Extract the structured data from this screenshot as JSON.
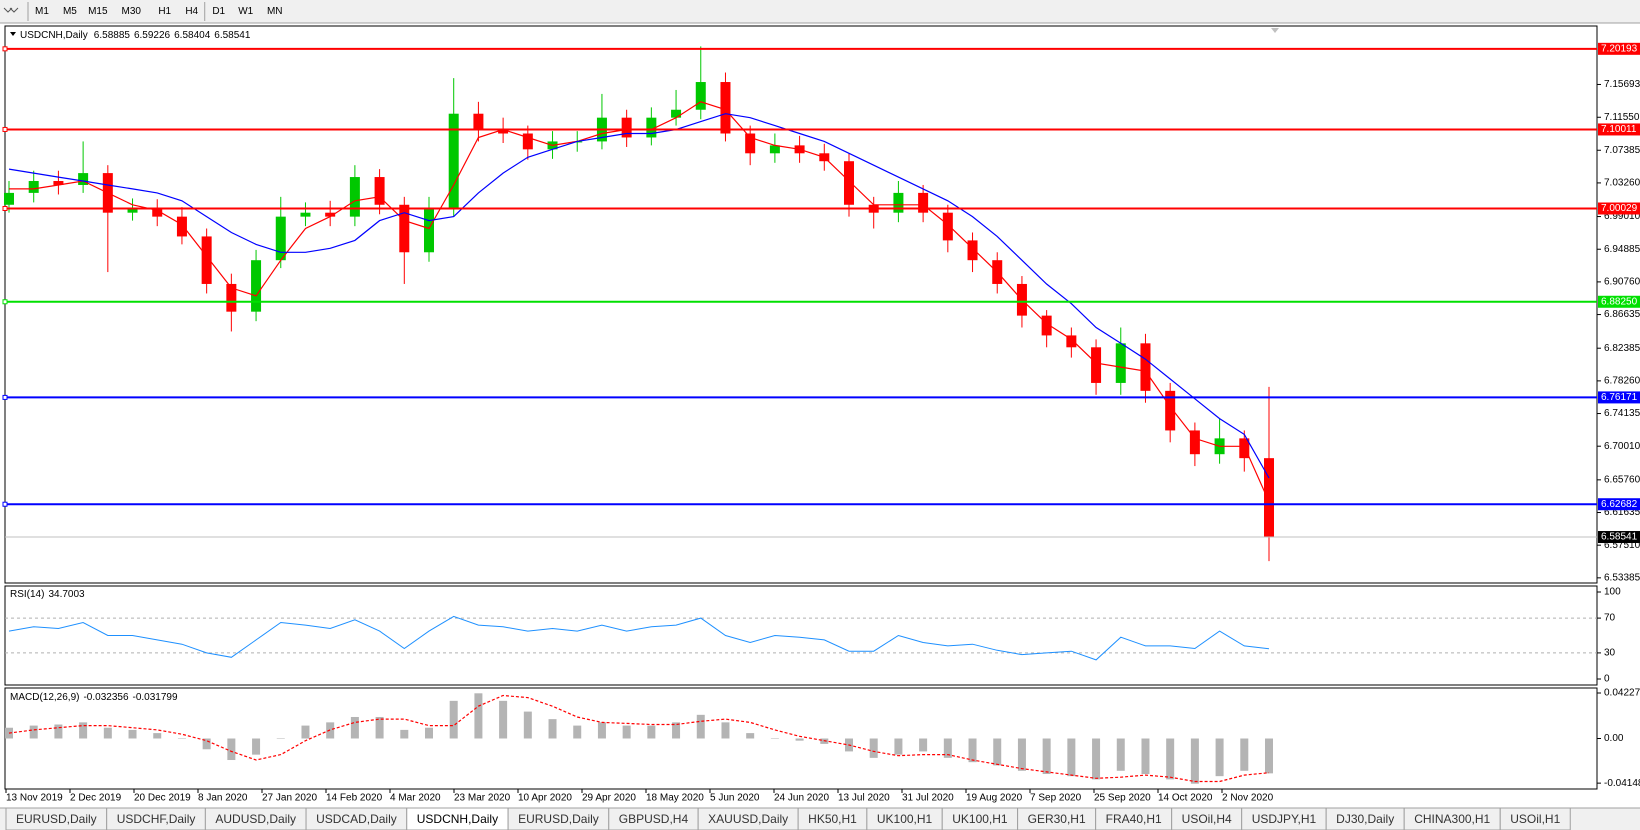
{
  "toolbar": {
    "timeframes": [
      "M1",
      "M5",
      "M15",
      "M30",
      "H1",
      "H4",
      "D1",
      "W1",
      "MN"
    ]
  },
  "chart_data": {
    "type": "candlestick",
    "symbol": "USDCNH,Daily",
    "quote": [
      6.58885,
      6.59226,
      6.58404,
      6.58541
    ],
    "categories": [
      "13 Nov 2019",
      "2 Dec 2019",
      "20 Dec 2019",
      "8 Jan 2020",
      "27 Jan 2020",
      "14 Feb 2020",
      "4 Mar 2020",
      "23 Mar 2020",
      "10 Apr 2020",
      "29 Apr 2020",
      "18 May 2020",
      "5 Jun 2020",
      "24 Jun 2020",
      "13 Jul 2020",
      "31 Jul 2020",
      "19 Aug 2020",
      "7 Sep 2020",
      "25 Sep 2020",
      "14 Oct 2020",
      "2 Nov 2020"
    ],
    "open": [
      7.005,
      7.02,
      7.035,
      7.03,
      7.045,
      6.995,
      7.0,
      6.99,
      6.965,
      6.905,
      6.87,
      6.935,
      6.99,
      6.995,
      6.99,
      7.04,
      7.005,
      6.945,
      7.0,
      7.12,
      7.1,
      7.095,
      7.075,
      7.085,
      7.085,
      7.115,
      7.09,
      7.115,
      7.125,
      7.16,
      7.095,
      7.07,
      7.08,
      7.07,
      7.06,
      7.005,
      6.995,
      7.02,
      6.995,
      6.96,
      6.935,
      6.905,
      6.865,
      6.84,
      6.825,
      6.78,
      6.83,
      6.77,
      6.72,
      6.69,
      6.71,
      6.685
    ],
    "high": [
      7.035,
      7.048,
      7.048,
      7.085,
      7.055,
      7.013,
      7.012,
      7.002,
      6.975,
      6.918,
      6.948,
      7.015,
      7.008,
      7.01,
      7.055,
      7.05,
      7.015,
      7.015,
      7.165,
      7.135,
      7.115,
      7.105,
      7.098,
      7.098,
      7.145,
      7.125,
      7.128,
      7.15,
      7.205,
      7.172,
      7.105,
      7.095,
      7.092,
      7.082,
      7.07,
      7.015,
      7.035,
      7.03,
      7.005,
      6.97,
      6.945,
      6.915,
      6.872,
      6.85,
      6.835,
      6.85,
      6.842,
      6.78,
      6.73,
      6.735,
      6.72,
      6.775
    ],
    "low": [
      6.995,
      7.008,
      7.018,
      7.02,
      6.92,
      6.985,
      6.978,
      6.955,
      6.893,
      6.845,
      6.858,
      6.925,
      6.978,
      6.978,
      6.978,
      6.993,
      6.905,
      6.933,
      6.99,
      7.085,
      7.083,
      7.062,
      7.063,
      7.072,
      7.075,
      7.078,
      7.08,
      7.105,
      7.113,
      7.085,
      7.055,
      7.058,
      7.058,
      7.048,
      6.99,
      6.975,
      6.983,
      6.983,
      6.945,
      6.92,
      6.893,
      6.85,
      6.825,
      6.812,
      6.765,
      6.765,
      6.755,
      6.705,
      6.675,
      6.678,
      6.668,
      6.555
    ],
    "close": [
      7.02,
      7.035,
      7.03,
      7.045,
      6.995,
      7.0,
      6.99,
      6.965,
      6.905,
      6.87,
      6.935,
      6.99,
      6.995,
      6.99,
      7.04,
      7.005,
      6.945,
      7.0,
      7.12,
      7.1,
      7.095,
      7.075,
      7.085,
      7.085,
      7.115,
      7.09,
      7.115,
      7.125,
      7.16,
      7.095,
      7.07,
      7.08,
      7.07,
      7.06,
      7.005,
      6.995,
      7.02,
      6.995,
      6.96,
      6.935,
      6.905,
      6.865,
      6.84,
      6.825,
      6.78,
      6.83,
      6.77,
      6.72,
      6.69,
      6.71,
      6.685,
      6.585
    ],
    "up_color": "#00c800",
    "down_color": "#ff0000",
    "ylim": [
      6.5286,
      7.2295
    ],
    "yticks": [
      7.15693,
      {
        "value": 7.1155,
        "label": "7.11550"
      },
      7.07385,
      {
        "value": 7.0326,
        "label": "7.03260"
      },
      {
        "value": 6.9901,
        "label": "6.99010"
      },
      6.94885,
      {
        "value": 6.9076,
        "label": "6.90760"
      },
      6.86635,
      6.82385,
      {
        "value": 6.7826,
        "label": "6.78260"
      },
      6.74135,
      {
        "value": 6.7001,
        "label": "6.70010"
      },
      {
        "value": 6.6576,
        "label": "6.65760"
      },
      6.61635,
      {
        "value": 6.5751,
        "label": "6.57510"
      },
      6.53385
    ],
    "moving_averages": [
      {
        "color": "#ff0000",
        "values": [
          7.025,
          7.025,
          7.03,
          7.035,
          7.02,
          7.005,
          6.998,
          6.98,
          6.94,
          6.9,
          6.89,
          6.935,
          6.975,
          6.99,
          7.01,
          7.015,
          6.985,
          6.975,
          7.03,
          7.09,
          7.1,
          7.09,
          7.08,
          7.085,
          7.095,
          7.1,
          7.1,
          7.115,
          7.135,
          7.125,
          7.09,
          7.08,
          7.075,
          7.065,
          7.035,
          7.005,
          7.005,
          7.005,
          6.98,
          6.95,
          6.92,
          6.885,
          6.855,
          6.835,
          6.805,
          6.8,
          6.795,
          6.75,
          6.71,
          6.7,
          6.7,
          6.63
        ]
      },
      {
        "color": "#0000ff",
        "values": [
          7.05,
          7.045,
          7.04,
          7.035,
          7.03,
          7.025,
          7.02,
          7.01,
          6.99,
          6.97,
          6.955,
          6.945,
          6.945,
          6.95,
          6.96,
          6.985,
          6.995,
          6.985,
          6.99,
          7.02,
          7.045,
          7.065,
          7.075,
          7.085,
          7.09,
          7.095,
          7.095,
          7.1,
          7.11,
          7.12,
          7.115,
          7.105,
          7.095,
          7.085,
          7.07,
          7.055,
          7.04,
          7.025,
          7.01,
          6.99,
          6.965,
          6.935,
          6.905,
          6.88,
          6.85,
          6.83,
          6.81,
          6.785,
          6.76,
          6.735,
          6.715,
          6.66
        ]
      }
    ],
    "levels": [
      {
        "price": 7.20193,
        "color": "#ff0000"
      },
      {
        "price": 7.10011,
        "color": "#ff0000"
      },
      {
        "price": 7.00029,
        "color": "#ff0000"
      },
      {
        "price": {
          "value": 6.8825,
          "label": "6.88250"
        },
        "color": "#00e000"
      },
      {
        "price": 6.76171,
        "color": "#0000ff"
      },
      {
        "price": 6.62682,
        "color": "#0000ff"
      }
    ],
    "last_color": "#c0c0c0",
    "rsi": {
      "name": "RSI(14)",
      "value": 34.7003,
      "color": "#1e90ff",
      "ylim": [
        0,
        100
      ],
      "yticks": [
        100,
        70,
        30,
        0
      ],
      "values": [
        55,
        60,
        58,
        65,
        50,
        50,
        45,
        40,
        30,
        25,
        45,
        65,
        62,
        58,
        68,
        55,
        35,
        55,
        72,
        62,
        60,
        55,
        58,
        55,
        62,
        55,
        60,
        62,
        70,
        50,
        42,
        50,
        48,
        45,
        32,
        32,
        50,
        42,
        38,
        40,
        33,
        28,
        30,
        32,
        22,
        48,
        38,
        38,
        35,
        55,
        38,
        34.7
      ]
    },
    "macd": {
      "name": "MACD(12,26,9)",
      "readout": [
        -0.032356,
        -0.031799
      ],
      "hist_color": "#b4b4b4",
      "signal_color": "#ff0000",
      "ylim": [
        -0.046,
        0.046
      ],
      "yticks": [
        0.042275,
        {
          "value": 0,
          "label": "0.00"
        },
        -0.04148
      ],
      "histogram": [
        0.01,
        0.012,
        0.013,
        0.015,
        0.01,
        0.008,
        0.005,
        0.0,
        -0.01,
        -0.02,
        -0.015,
        0.0,
        0.012,
        0.015,
        0.02,
        0.02,
        0.008,
        0.01,
        0.035,
        0.042,
        0.035,
        0.025,
        0.018,
        0.012,
        0.015,
        0.012,
        0.012,
        0.015,
        0.022,
        0.015,
        0.005,
        0.0,
        -0.002,
        -0.005,
        -0.012,
        -0.018,
        -0.015,
        -0.012,
        -0.018,
        -0.022,
        -0.025,
        -0.03,
        -0.033,
        -0.035,
        -0.038,
        -0.03,
        -0.033,
        -0.038,
        -0.042,
        -0.035,
        -0.03,
        -0.0324
      ],
      "signal": [
        0.005,
        0.008,
        0.01,
        0.012,
        0.012,
        0.01,
        0.008,
        0.004,
        -0.002,
        -0.012,
        -0.02,
        -0.015,
        -0.002,
        0.008,
        0.015,
        0.018,
        0.018,
        0.012,
        0.012,
        0.03,
        0.04,
        0.038,
        0.03,
        0.02,
        0.015,
        0.014,
        0.013,
        0.013,
        0.016,
        0.018,
        0.015,
        0.008,
        0.002,
        -0.002,
        -0.006,
        -0.012,
        -0.016,
        -0.015,
        -0.015,
        -0.02,
        -0.024,
        -0.028,
        -0.031,
        -0.034,
        -0.037,
        -0.036,
        -0.034,
        -0.036,
        -0.04,
        -0.04,
        -0.034,
        -0.0318
      ]
    }
  },
  "tabs": [
    "EURUSD,Daily",
    "USDCHF,Daily",
    "AUDUSD,Daily",
    "USDCAD,Daily",
    "USDCNH,Daily",
    "EURUSD,Daily",
    "GBPUSD,H4",
    "XAUUSD,Daily",
    "HK50,H1",
    "UK100,H1",
    "UK100,H1",
    "GER30,H1",
    "FRA40,H1",
    "USOil,H4",
    "USDJPY,H1",
    "DJ30,Daily",
    "CHINA300,H1",
    "USOil,H1"
  ],
  "active_tab": 4
}
